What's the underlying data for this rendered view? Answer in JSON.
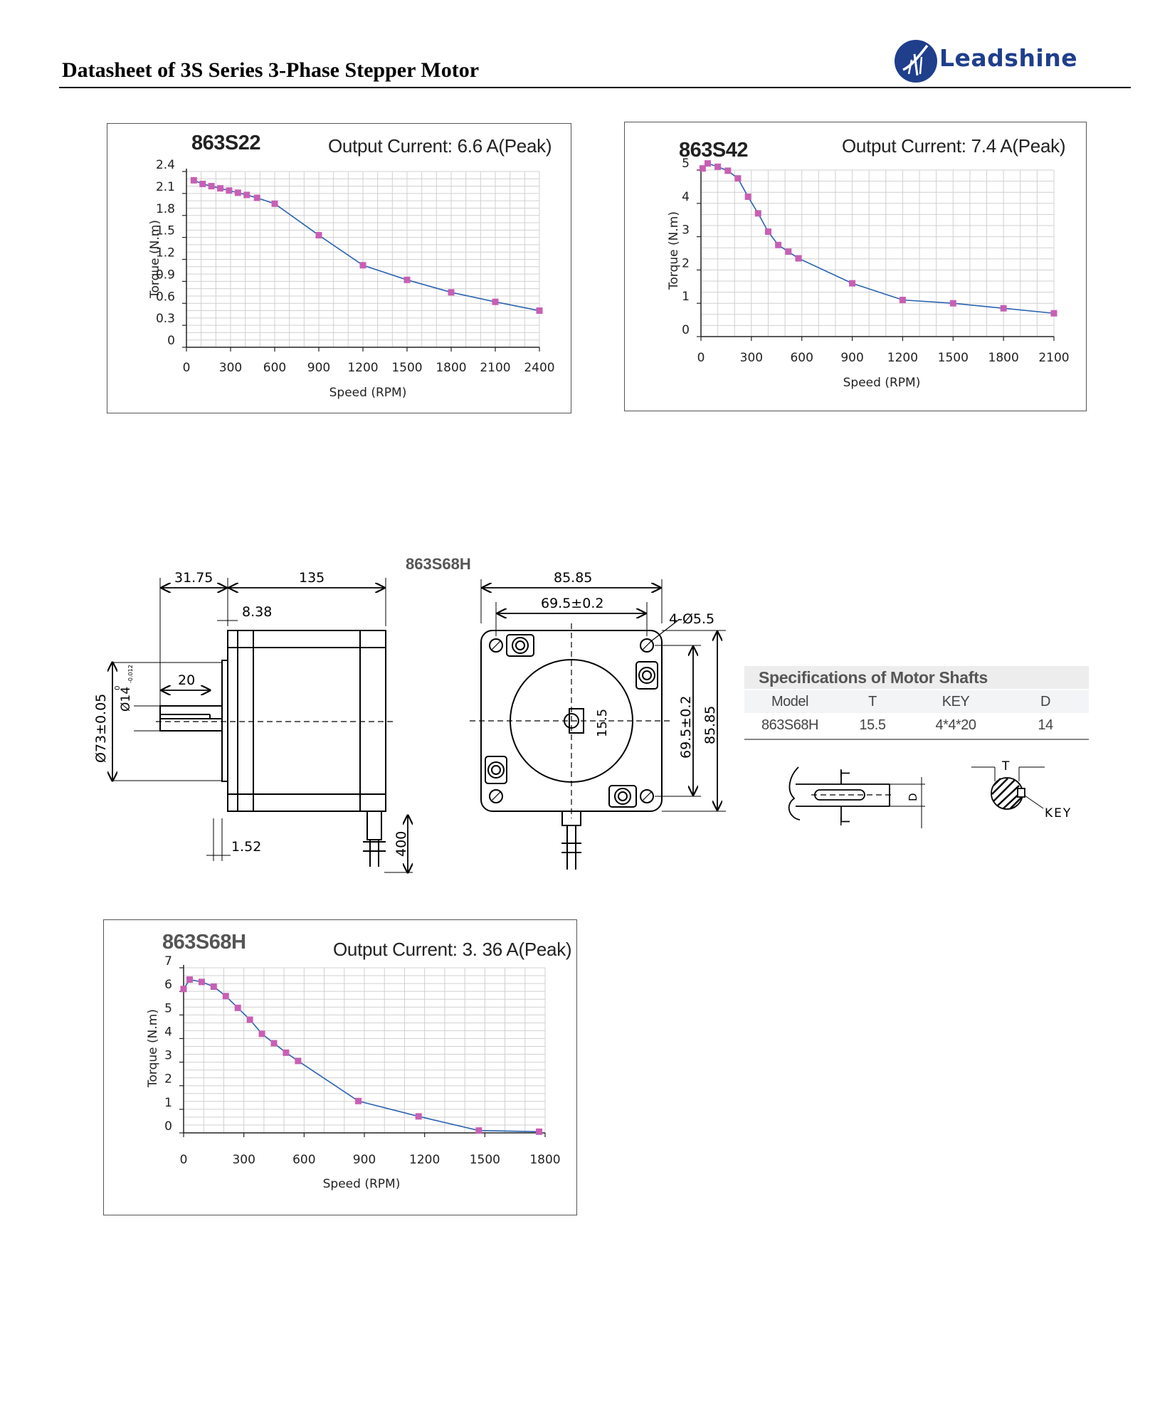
{
  "header": {
    "title": "Datasheet of 3S Series 3-Phase Stepper Motor",
    "logo_text": "Leadshine",
    "brand_color": "#1f3e8c"
  },
  "charts": [
    {
      "id": "863S22",
      "model": "863S22",
      "current": "Output Current: 6.6 A(Peak)",
      "xlabel": "Speed (RPM)",
      "ylabel": "Torque (N.m)",
      "xticks": [
        "0",
        "300",
        "600",
        "900",
        "1200",
        "1500",
        "1800",
        "2100",
        "2400"
      ],
      "yticks": [
        "0",
        "0.3",
        "0.6",
        "0.9",
        "1.2",
        "1.5",
        "1.8",
        "2.1",
        "2.4"
      ]
    },
    {
      "id": "863S42",
      "model": "863S42",
      "current": "Output Current: 7.4 A(Peak)",
      "xlabel": "Speed (RPM)",
      "ylabel": "Torque (N.m)",
      "xticks": [
        "0",
        "300",
        "600",
        "900",
        "1200",
        "1500",
        "1800",
        "2100"
      ],
      "yticks": [
        "0",
        "1",
        "2",
        "3",
        "4",
        "5"
      ]
    },
    {
      "id": "863S68H",
      "model": "863S68H",
      "current": "Output Current: 3. 36 A(Peak)",
      "xlabel": "Speed (RPM)",
      "ylabel": "Torque (N.m)",
      "xticks": [
        "0",
        "300",
        "600",
        "900",
        "1200",
        "1500",
        "1800"
      ],
      "yticks": [
        "0",
        "1",
        "2",
        "3",
        "4",
        "5",
        "6",
        "7"
      ]
    }
  ],
  "chart_data": [
    {
      "type": "line",
      "title": "863S22",
      "subtitle": "Output Current: 6.6 A(Peak)",
      "xlabel": "Speed (RPM)",
      "ylabel": "Torque (N.m)",
      "xlim": [
        0,
        2400
      ],
      "ylim": [
        0,
        2.4
      ],
      "grid": true,
      "marker_color": "#c85fb4",
      "line_color": "#2a62b0",
      "x": [
        50,
        110,
        170,
        230,
        290,
        350,
        410,
        480,
        600,
        900,
        1200,
        1500,
        1800,
        2100,
        2400
      ],
      "y": [
        2.28,
        2.23,
        2.2,
        2.17,
        2.14,
        2.11,
        2.08,
        2.04,
        1.96,
        1.53,
        1.12,
        0.92,
        0.75,
        0.62,
        0.5
      ]
    },
    {
      "type": "line",
      "title": "863S42",
      "subtitle": "Output Current: 7.4 A(Peak)",
      "xlabel": "Speed (RPM)",
      "ylabel": "Torque (N.m)",
      "xlim": [
        0,
        2100
      ],
      "ylim": [
        0,
        5
      ],
      "grid": true,
      "marker_color": "#c85fb4",
      "line_color": "#2a62b0",
      "x": [
        10,
        40,
        100,
        160,
        220,
        280,
        340,
        400,
        460,
        520,
        580,
        900,
        1200,
        1500,
        1800,
        2100
      ],
      "y": [
        5.05,
        5.2,
        5.1,
        4.98,
        4.75,
        4.2,
        3.7,
        3.15,
        2.75,
        2.55,
        2.35,
        1.6,
        1.1,
        1.0,
        0.85,
        0.7
      ]
    },
    {
      "type": "line",
      "title": "863S68H",
      "subtitle": "Output Current: 3. 36 A(Peak)",
      "xlabel": "Speed (RPM)",
      "ylabel": "Torque (N.m)",
      "xlim": [
        0,
        1800
      ],
      "ylim": [
        0,
        7
      ],
      "grid": true,
      "marker_color": "#c85fb4",
      "line_color": "#2a62b0",
      "x": [
        0,
        30,
        90,
        150,
        210,
        270,
        330,
        390,
        450,
        510,
        570,
        870,
        1170,
        1470,
        1770
      ],
      "y": [
        6.1,
        6.5,
        6.4,
        6.2,
        5.8,
        5.3,
        4.8,
        4.2,
        3.8,
        3.4,
        3.05,
        1.35,
        0.7,
        0.1,
        0.05
      ]
    }
  ],
  "drawing": {
    "model": "863S68H",
    "side": {
      "shaft_length": "31.75",
      "body_length": "135",
      "flange_offset": "8.38",
      "key_length": "20",
      "pilot_dia": "Ø73±0.05",
      "shaft_dia": "Ø14",
      "shaft_tol_upper": "0",
      "shaft_tol_lower": "-0.012",
      "flange_thickness": "1.52",
      "lead_length": "400"
    },
    "front": {
      "frame_width": "85.85",
      "hole_spacing_h": "69.5±0.2",
      "holes": "4-Ø5.5",
      "hole_spacing_v": "69.5±0.2",
      "frame_height": "85.85",
      "shaft_flat": "15.5"
    }
  },
  "shaft_spec": {
    "title": "Specifications of Motor Shafts",
    "headers": [
      "Model",
      "T",
      "KEY",
      "D"
    ],
    "row": [
      "863S68H",
      "15.5",
      "4*4*20",
      "14"
    ],
    "labels": {
      "t_side": "T",
      "d_side": "D",
      "t_end": "T",
      "key": "KEY"
    }
  }
}
